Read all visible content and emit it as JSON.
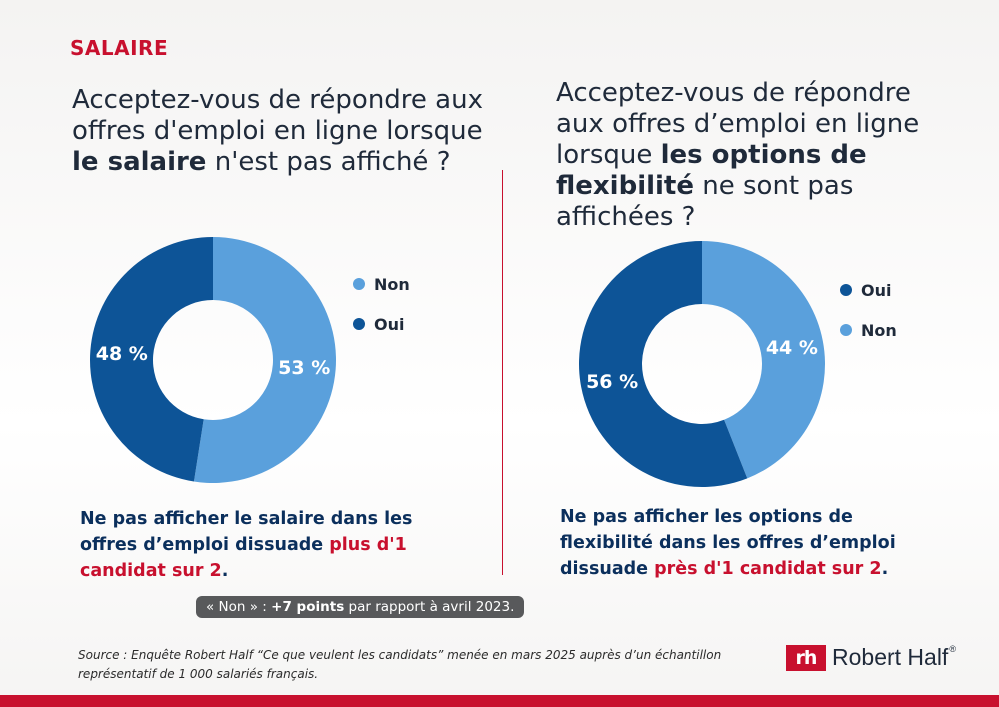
{
  "section_tag": "SALAIRE",
  "left": {
    "question_parts": [
      "Acceptez-vous de répondre aux offres d'emploi en ligne lorsque ",
      "le salaire",
      " n'est pas affiché ?"
    ],
    "legend": [
      {
        "label": "Non",
        "color": "#5aa0dc"
      },
      {
        "label": "Oui",
        "color": "#0d5497"
      }
    ],
    "takeaway_parts": [
      "Ne pas afficher le salaire dans les offres d’emploi dissuade ",
      "plus d'1 candidat sur 2",
      "."
    ],
    "note": {
      "prefix": "« Non » : ",
      "bold": "+7 points",
      "suffix": " par rapport à avril 2023."
    }
  },
  "right": {
    "question_parts": [
      "Acceptez-vous de répondre aux offres d’emploi en ligne lorsque ",
      "les options de flexibilité",
      " ne sont pas affichées ?"
    ],
    "legend": [
      {
        "label": "Oui",
        "color": "#0d5497"
      },
      {
        "label": "Non",
        "color": "#5aa0dc"
      }
    ],
    "takeaway_parts": [
      "Ne pas afficher les options de flexibilité dans les offres d’emploi dissuade ",
      "près d'1 candidat sur 2",
      "."
    ]
  },
  "chart_data": [
    {
      "type": "pie",
      "donut": true,
      "categories": [
        "Non",
        "Oui"
      ],
      "values": [
        53,
        48
      ],
      "data_labels": [
        "53 %",
        "48 %"
      ],
      "colors": [
        "#5aa0dc",
        "#0d5497"
      ],
      "legend_position": "right"
    },
    {
      "type": "pie",
      "donut": true,
      "categories": [
        "Non",
        "Oui"
      ],
      "values": [
        44,
        56
      ],
      "data_labels": [
        "44 %",
        "56 %"
      ],
      "colors": [
        "#5aa0dc",
        "#0d5497"
      ],
      "legend_position": "right"
    }
  ],
  "source": "Source : Enquête Robert Half “Ce que veulent les candidats” menée en mars 2025 auprès d’un échantillon représentatif de 1 000 salariés français.",
  "logo": {
    "mark": "rh",
    "text": "Robert Half",
    "reg": "®"
  },
  "colors": {
    "accent": "#c8102e",
    "navy": "#0b2f5c",
    "light_blue": "#5aa0dc",
    "dark_blue": "#0d5497"
  }
}
